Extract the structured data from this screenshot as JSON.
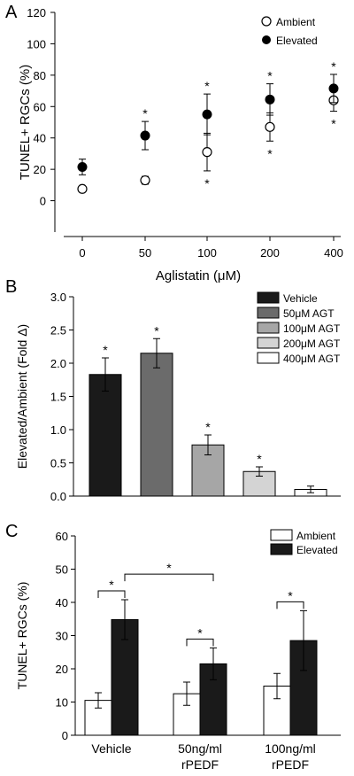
{
  "chart_data": [
    {
      "panel": "A",
      "type": "scatter",
      "xlabel": "Aglistatin (μM)",
      "ylabel": "TUNEL+ RGCs (%)",
      "categories": [
        "0",
        "50",
        "100",
        "200",
        "400"
      ],
      "ylim": [
        -20,
        120
      ],
      "yticks": [
        "0",
        "20",
        "40",
        "60",
        "80",
        "100",
        "120"
      ],
      "legend": "top-right",
      "series": [
        {
          "name": "Ambient",
          "marker": "open-circle",
          "values": [
            7.5,
            13,
            31,
            47,
            64
          ],
          "errors": [
            1.5,
            2.5,
            12,
            9,
            7
          ],
          "sig": [
            "",
            "",
            "*",
            "*",
            "*"
          ]
        },
        {
          "name": "Elevated",
          "marker": "filled-circle",
          "values": [
            21.5,
            41.5,
            55,
            64.5,
            71.5
          ],
          "errors": [
            5,
            9,
            13,
            10,
            9
          ],
          "sig": [
            "",
            "*",
            "*",
            "*",
            "*"
          ]
        }
      ]
    },
    {
      "panel": "B",
      "type": "bar",
      "ylabel": "Elevated/Ambient (Fold Δ)",
      "ylim": [
        0,
        3
      ],
      "yticks": [
        "0.0",
        "0.5",
        "1.0",
        "1.5",
        "2.0",
        "2.5",
        "3.0"
      ],
      "legend": "top-right",
      "categories": [
        "Vehicle",
        "50μM AGT",
        "100μM AGT",
        "200μM AGT",
        "400μM AGT"
      ],
      "values": [
        1.83,
        2.15,
        0.77,
        0.37,
        0.1
      ],
      "errors": [
        0.25,
        0.22,
        0.15,
        0.07,
        0.05
      ],
      "colors": [
        "#1a1a1a",
        "#6b6b6b",
        "#a6a6a6",
        "#d4d4d4",
        "#ffffff"
      ],
      "sig": [
        "*",
        "*",
        "*",
        "*",
        ""
      ]
    },
    {
      "panel": "C",
      "type": "bar",
      "ylabel": "TUNEL+ RGCs (%)",
      "ylim": [
        0,
        60
      ],
      "yticks": [
        "0",
        "10",
        "20",
        "30",
        "40",
        "50",
        "60"
      ],
      "legend": "top-right",
      "categories": [
        [
          "Vehicle"
        ],
        [
          "50ng/ml",
          "rPEDF"
        ],
        [
          "100ng/ml",
          "rPEDF"
        ]
      ],
      "series": [
        {
          "name": "Ambient",
          "color": "#ffffff",
          "values": [
            10.5,
            12.5,
            14.8
          ],
          "errors": [
            2.3,
            3.5,
            3.8
          ]
        },
        {
          "name": "Elevated",
          "color": "#1a1a1a",
          "values": [
            34.8,
            21.5,
            28.5
          ],
          "errors": [
            6,
            4.8,
            9
          ]
        }
      ],
      "brackets": [
        {
          "label": "*",
          "group": 0
        },
        {
          "label": "*",
          "group": 1
        },
        {
          "label": "*",
          "group": 2
        },
        {
          "label": "*",
          "from_group": 0,
          "to_group": 1
        }
      ]
    }
  ]
}
